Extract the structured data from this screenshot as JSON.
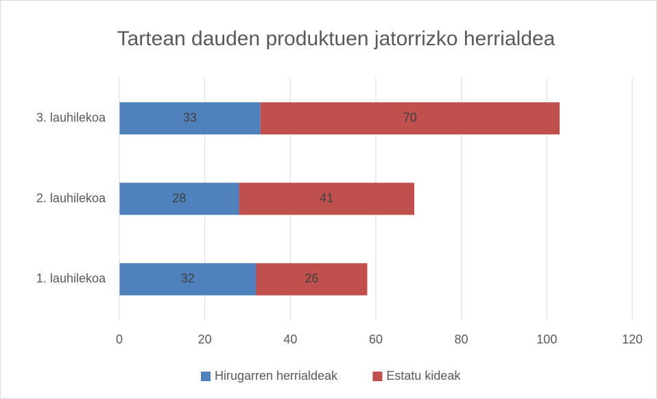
{
  "chart_data": {
    "type": "stacked_barh",
    "title": "Tartean dauden produktuen jatorrizko herrialdea",
    "categories": [
      "1. lauhilekoa",
      "2. lauhilekoa",
      "3. lauhilekoa"
    ],
    "series": [
      {
        "name": "Hirugarren herrialdeak",
        "color": "#4f81bd",
        "values": [
          32,
          28,
          33
        ]
      },
      {
        "name": "Estatu kideak",
        "color": "#c0504d",
        "values": [
          26,
          41,
          70
        ]
      }
    ],
    "xlim": [
      0,
      120
    ],
    "xticks": [
      0,
      20,
      40,
      60,
      80,
      100,
      120
    ],
    "grid": true,
    "legend": "bottom"
  }
}
